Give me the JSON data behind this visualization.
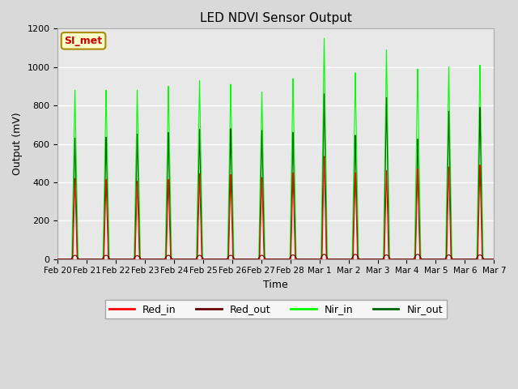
{
  "title": "LED NDVI Sensor Output",
  "xlabel": "Time",
  "ylabel": "Output (mV)",
  "ylim": [
    0,
    1200
  ],
  "yticks": [
    0,
    200,
    400,
    600,
    800,
    1000,
    1200
  ],
  "x_labels": [
    "Feb 20",
    "Feb 21",
    "Feb 22",
    "Feb 23",
    "Feb 24",
    "Feb 25",
    "Feb 26",
    "Feb 27",
    "Feb 28",
    "Mar 1",
    "Mar 2",
    "Mar 3",
    "Mar 4",
    "Mar 5",
    "Mar 6",
    "Mar 7"
  ],
  "annotation_text": "SI_met",
  "annotation_color": "#cc0000",
  "annotation_bg": "#ffffcc",
  "annotation_border": "#aa8800",
  "colors": {
    "red_in": "#ff0000",
    "red_out": "#660000",
    "nir_in": "#00ff00",
    "nir_out": "#006600"
  },
  "background_color": "#e8e8e8",
  "grid_color": "#ffffff",
  "legend_labels": [
    "Red_in",
    "Red_out",
    "Nir_in",
    "Nir_out"
  ],
  "nir_in_peaks": [
    880,
    880,
    880,
    900,
    930,
    910,
    870,
    940,
    1150,
    970,
    1090,
    990,
    1000,
    1010
  ],
  "nir_out_peaks": [
    630,
    635,
    650,
    660,
    675,
    680,
    670,
    660,
    860,
    645,
    840,
    625,
    770,
    790
  ],
  "red_in_peaks": [
    420,
    415,
    405,
    415,
    445,
    440,
    425,
    450,
    535,
    450,
    460,
    470,
    480,
    490
  ],
  "red_out_peaks": [
    20,
    20,
    18,
    20,
    20,
    20,
    20,
    22,
    25,
    25,
    22,
    25,
    22,
    22
  ],
  "num_cycles": 14,
  "figsize": [
    6.4,
    4.8
  ],
  "dpi": 100
}
